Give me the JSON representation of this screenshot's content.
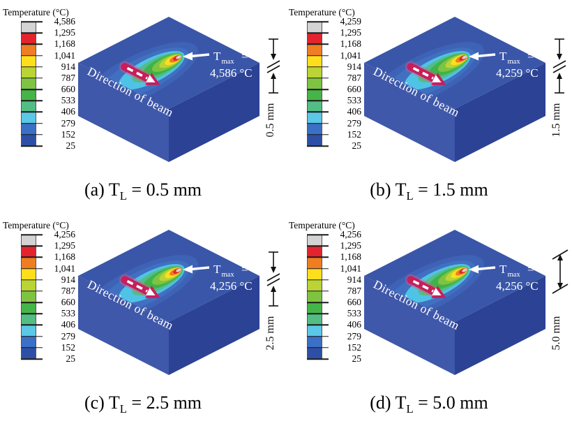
{
  "figure": {
    "legend_title": "Temperature (°C)",
    "beam_label": "Direction of beam",
    "tmax_prefix": "T",
    "tmax_sub": "max",
    "tmax_eq": "=",
    "band_colors": [
      "#d3d3d3",
      "#e3242e",
      "#ef7d22",
      "#ffdf1c",
      "#b9d434",
      "#7ec342",
      "#46b549",
      "#53bd86",
      "#5ac8e6",
      "#3a70c6",
      "#2d50a6"
    ],
    "block_colors": {
      "top": "#3a56a8",
      "left": "#3f58aa",
      "right": "#2c4294"
    },
    "beam_arrow_color": "#c81e5b"
  },
  "panels": [
    {
      "legend_values": [
        "4,586",
        "1,295",
        "1,168",
        "1,041",
        "914",
        "787",
        "660",
        "533",
        "406",
        "279",
        "152",
        "25"
      ],
      "tmax_value": "4,586 °C",
      "thickness": "0.5 mm",
      "dim_style": "break",
      "caption": {
        "pre": "(a) T",
        "sub": "L",
        "post": " = 0.5 mm"
      }
    },
    {
      "legend_values": [
        "4,259",
        "1,295",
        "1,168",
        "1,041",
        "914",
        "787",
        "660",
        "533",
        "406",
        "279",
        "152",
        "25"
      ],
      "tmax_value": "4,259 °C",
      "thickness": "1.5 mm",
      "dim_style": "break",
      "caption": {
        "pre": "(b) T",
        "sub": "L",
        "post": " = 1.5 mm"
      }
    },
    {
      "legend_values": [
        "4,256",
        "1,295",
        "1,168",
        "1,041",
        "914",
        "787",
        "660",
        "533",
        "406",
        "279",
        "152",
        "25"
      ],
      "tmax_value": "4,256 °C",
      "thickness": "2.5 mm",
      "dim_style": "break",
      "caption": {
        "pre": "(c) T",
        "sub": "L",
        "post": " = 2.5 mm"
      }
    },
    {
      "legend_values": [
        "4,256",
        "1,295",
        "1,168",
        "1,041",
        "914",
        "787",
        "660",
        "533",
        "406",
        "279",
        "152",
        "25"
      ],
      "tmax_value": "4,256 °C",
      "thickness": "5.0 mm",
      "dim_style": "span",
      "caption": {
        "pre": "(d) T",
        "sub": "L",
        "post": " = 5.0 mm"
      }
    }
  ],
  "chart_data": {
    "type": "heatmap",
    "title": "Temperature (°C)",
    "categories": [
      "T_L = 0.5 mm",
      "T_L = 1.5 mm",
      "T_L = 2.5 mm",
      "T_L = 5.0 mm"
    ],
    "series": [
      {
        "name": "T_max (°C)",
        "values": [
          4586,
          4259,
          4256,
          4256
        ]
      },
      {
        "name": "layer thickness T_L (mm)",
        "values": [
          0.5,
          1.5,
          2.5,
          5.0
        ]
      }
    ],
    "color_scale_ticks_C": {
      "panel_a": [
        4586,
        1295,
        1168,
        1041,
        914,
        787,
        660,
        533,
        406,
        279,
        152,
        25
      ],
      "panel_b": [
        4259,
        1295,
        1168,
        1041,
        914,
        787,
        660,
        533,
        406,
        279,
        152,
        25
      ],
      "panel_c": [
        4256,
        1295,
        1168,
        1041,
        914,
        787,
        660,
        533,
        406,
        279,
        152,
        25
      ],
      "panel_d": [
        4256,
        1295,
        1168,
        1041,
        914,
        787,
        660,
        533,
        406,
        279,
        152,
        25
      ]
    },
    "legend_position": "left of each panel",
    "annotations": [
      "Direction of beam",
      "T_max pointer on hot spot",
      "thickness dimension at right edge"
    ]
  }
}
